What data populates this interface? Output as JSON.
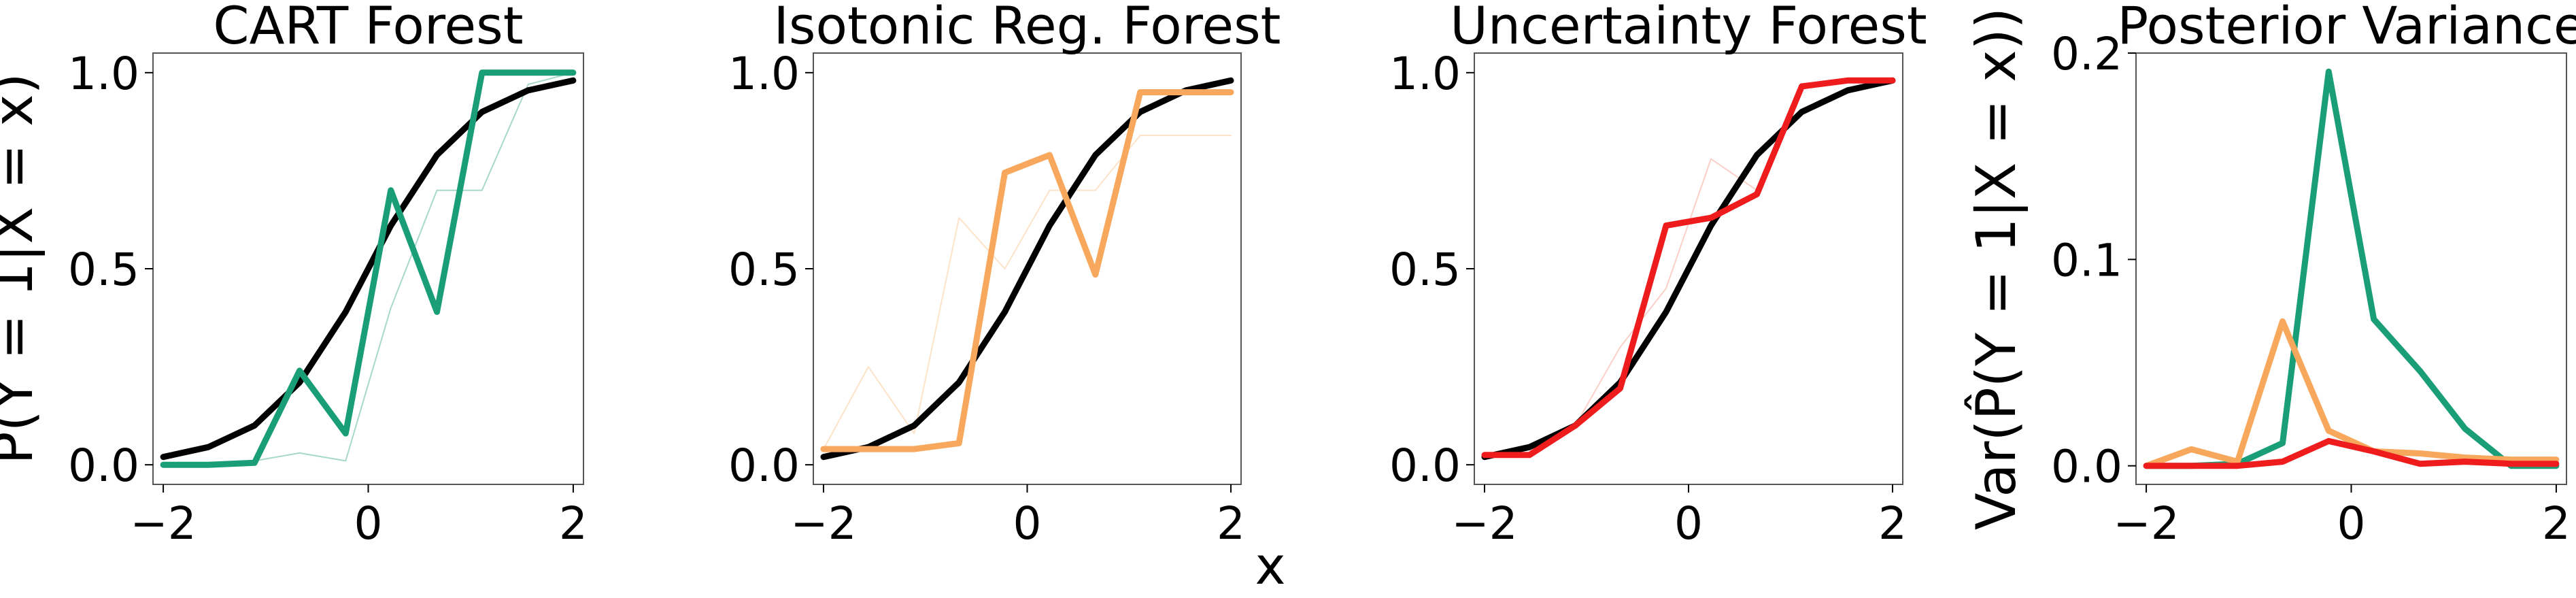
{
  "figure": {
    "shared_xlabel": "x"
  },
  "chart_data": [
    {
      "type": "line",
      "title": "CART Forest",
      "ylabel": "P̂(Y = 1|X = x)",
      "xlim": [
        -2.1,
        2.1
      ],
      "ylim": [
        -0.05,
        1.05
      ],
      "xticks": [
        -2,
        0,
        2
      ],
      "xtick_labels": [
        "−2",
        "0",
        "2"
      ],
      "yticks": [
        0.0,
        0.5,
        1.0
      ],
      "ytick_labels": [
        "0.0",
        "0.5",
        "1.0"
      ],
      "x": [
        -2.0,
        -1.56,
        -1.11,
        -0.67,
        -0.22,
        0.22,
        0.67,
        1.11,
        1.56,
        2.0
      ],
      "series": [
        {
          "color": "#000000",
          "role": "truth",
          "values": [
            0.02,
            0.045,
            0.1,
            0.21,
            0.39,
            0.61,
            0.79,
            0.9,
            0.955,
            0.98
          ]
        },
        {
          "color": "#1a9e77",
          "role": "estimate",
          "values": [
            0.0,
            0.0,
            0.005,
            0.24,
            0.08,
            0.7,
            0.39,
            1.0,
            1.0,
            1.0
          ]
        },
        {
          "color": "#a8d8cc",
          "role": "faint",
          "values": [
            0.0,
            0.0,
            0.01,
            0.03,
            0.01,
            0.4,
            0.7,
            0.7,
            0.97,
            1.0
          ]
        }
      ]
    },
    {
      "type": "line",
      "title": "Isotonic Reg. Forest",
      "ylabel": "",
      "xlim": [
        -2.1,
        2.1
      ],
      "ylim": [
        -0.05,
        1.05
      ],
      "xticks": [
        -2,
        0,
        2
      ],
      "xtick_labels": [
        "−2",
        "0",
        "2"
      ],
      "yticks": [
        0.0,
        0.5,
        1.0
      ],
      "ytick_labels": [
        "0.0",
        "0.5",
        "1.0"
      ],
      "x": [
        -2.0,
        -1.56,
        -1.11,
        -0.67,
        -0.22,
        0.22,
        0.67,
        1.11,
        1.56,
        2.0
      ],
      "series": [
        {
          "color": "#000000",
          "role": "truth",
          "values": [
            0.02,
            0.045,
            0.1,
            0.21,
            0.39,
            0.61,
            0.79,
            0.9,
            0.955,
            0.98
          ]
        },
        {
          "color": "#f7a85c",
          "role": "estimate",
          "values": [
            0.04,
            0.04,
            0.04,
            0.055,
            0.745,
            0.79,
            0.485,
            0.95,
            0.95,
            0.95
          ]
        },
        {
          "color": "#fde3c8",
          "role": "faint",
          "values": [
            0.04,
            0.25,
            0.08,
            0.63,
            0.5,
            0.7,
            0.7,
            0.84,
            0.84,
            0.84
          ]
        }
      ]
    },
    {
      "type": "line",
      "title": "Uncertainty Forest",
      "ylabel": "",
      "xlim": [
        -2.1,
        2.1
      ],
      "ylim": [
        -0.05,
        1.05
      ],
      "xticks": [
        -2,
        0,
        2
      ],
      "xtick_labels": [
        "−2",
        "0",
        "2"
      ],
      "yticks": [
        0.0,
        0.5,
        1.0
      ],
      "ytick_labels": [
        "0.0",
        "0.5",
        "1.0"
      ],
      "x": [
        -2.0,
        -1.56,
        -1.11,
        -0.67,
        -0.22,
        0.22,
        0.67,
        1.11,
        1.56,
        2.0
      ],
      "series": [
        {
          "color": "#000000",
          "role": "truth",
          "values": [
            0.02,
            0.045,
            0.1,
            0.21,
            0.39,
            0.61,
            0.79,
            0.9,
            0.955,
            0.98
          ]
        },
        {
          "color": "#ee1c1c",
          "role": "estimate",
          "values": [
            0.025,
            0.025,
            0.1,
            0.195,
            0.61,
            0.63,
            0.69,
            0.965,
            0.98,
            0.98
          ]
        },
        {
          "color": "#fcd0c8",
          "role": "faint",
          "values": [
            0.02,
            0.03,
            0.1,
            0.3,
            0.45,
            0.78,
            0.7,
            0.97,
            0.98,
            0.98
          ]
        }
      ]
    },
    {
      "type": "line",
      "title": "Posterior Variance",
      "ylabel": "Var(P̂(Y = 1|X = x))",
      "xlim": [
        -2.1,
        2.1
      ],
      "ylim": [
        -0.009,
        0.2
      ],
      "xticks": [
        -2,
        0,
        2
      ],
      "xtick_labels": [
        "−2",
        "0",
        "2"
      ],
      "yticks": [
        0.0,
        0.1,
        0.2
      ],
      "ytick_labels": [
        "0.0",
        "0.1",
        "0.2"
      ],
      "x": [
        -2.0,
        -1.56,
        -1.11,
        -0.67,
        -0.22,
        0.22,
        0.67,
        1.11,
        1.56,
        2.0
      ],
      "series": [
        {
          "color": "#1a9e77",
          "values": [
            0.0,
            0.0,
            0.001,
            0.011,
            0.191,
            0.071,
            0.046,
            0.018,
            0.0,
            0.0
          ]
        },
        {
          "color": "#f7a85c",
          "values": [
            0.0,
            0.008,
            0.002,
            0.07,
            0.017,
            0.007,
            0.006,
            0.004,
            0.003,
            0.003
          ]
        },
        {
          "color": "#ee1c1c",
          "values": [
            0.0,
            0.0,
            0.0,
            0.002,
            0.012,
            0.007,
            0.001,
            0.002,
            0.001,
            0.001
          ]
        }
      ]
    }
  ]
}
